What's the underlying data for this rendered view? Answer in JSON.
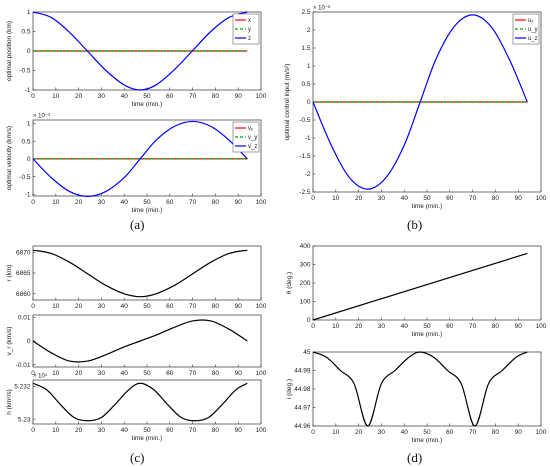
{
  "panel_labels": [
    "(a)",
    "(b)",
    "(c)",
    "(d)"
  ],
  "chart_data": [
    {
      "id": "a1",
      "type": "line",
      "ylabel": "optimal position (km)",
      "xlabel": "time (min.)",
      "xlim": [
        0,
        100
      ],
      "ylim": [
        -1,
        1
      ],
      "xticks": [
        0,
        10,
        20,
        30,
        40,
        50,
        60,
        70,
        80,
        90,
        100
      ],
      "yticks": [
        -1,
        -0.5,
        0,
        0.5,
        1
      ],
      "ytick_labels": [
        "-1",
        "-0.5",
        "0",
        "0.5",
        "1"
      ],
      "legend": "top-right",
      "series": [
        {
          "name": "x",
          "color": "#ff0000",
          "dash": false,
          "x": [
            0,
            94
          ],
          "y": [
            0,
            0
          ]
        },
        {
          "name": "y",
          "color": "#00a000",
          "dash": true,
          "x": [
            0,
            94
          ],
          "y": [
            0,
            0
          ]
        },
        {
          "name": "z",
          "color": "#0000ff",
          "dash": false,
          "x": [
            0,
            8,
            16,
            24,
            32,
            40,
            47,
            54,
            62,
            70,
            78,
            86,
            94
          ],
          "y": [
            1,
            0.86,
            0.48,
            -0.01,
            -0.5,
            -0.87,
            -1,
            -0.87,
            -0.48,
            0.01,
            0.5,
            0.86,
            1
          ]
        }
      ]
    },
    {
      "id": "a2",
      "type": "line",
      "ylabel": "optimal velocity (km/s)",
      "xlabel": "time (min.)",
      "xlim": [
        0,
        100
      ],
      "ylim": [
        -1.05,
        1.1
      ],
      "xticks": [
        0,
        10,
        20,
        30,
        40,
        50,
        60,
        70,
        80,
        90,
        100
      ],
      "yticks": [
        -1,
        -0.5,
        0,
        0.5,
        1
      ],
      "ytick_labels": [
        "-1",
        "-0.5",
        "0",
        "0.5",
        "1"
      ],
      "exponent": "× 10⁻³",
      "legend": "top-right",
      "series": [
        {
          "name": "vₓ",
          "color": "#ff0000",
          "dash": false,
          "x": [
            0,
            94
          ],
          "y": [
            0,
            0
          ]
        },
        {
          "name": "v_y",
          "color": "#00a000",
          "dash": true,
          "x": [
            0,
            94
          ],
          "y": [
            0,
            0
          ]
        },
        {
          "name": "v_z",
          "color": "#0000ff",
          "dash": false,
          "x": [
            0,
            8,
            16,
            24,
            32,
            40,
            47,
            54,
            62,
            70,
            78,
            86,
            94
          ],
          "y": [
            0,
            -0.53,
            -0.92,
            -1.06,
            -0.92,
            -0.53,
            0,
            0.53,
            0.92,
            1.06,
            0.92,
            0.53,
            0
          ]
        }
      ]
    },
    {
      "id": "b",
      "type": "line",
      "ylabel": "optimal control input (m/s²)",
      "xlabel": "time (min.)",
      "xlim": [
        0,
        100
      ],
      "ylim": [
        -2.5,
        2.5
      ],
      "xticks": [
        0,
        10,
        20,
        30,
        40,
        50,
        60,
        70,
        80,
        90,
        100
      ],
      "yticks": [
        -2.5,
        -2,
        -1.5,
        -1,
        -0.5,
        0,
        0.5,
        1,
        1.5,
        2,
        2.5
      ],
      "ytick_labels": [
        "-2.5",
        "-2",
        "-1.5",
        "-1",
        "-0.5",
        "0",
        "0.5",
        "1",
        "1.5",
        "2",
        "2.5"
      ],
      "exponent": "× 10⁻⁶",
      "legend": "top-right",
      "series": [
        {
          "name": "uₓ",
          "color": "#ff0000",
          "dash": false,
          "x": [
            0,
            94
          ],
          "y": [
            0,
            0
          ]
        },
        {
          "name": "u_y",
          "color": "#00a000",
          "dash": true,
          "x": [
            0,
            94
          ],
          "y": [
            0,
            0
          ]
        },
        {
          "name": "u_z",
          "color": "#0000ff",
          "dash": false,
          "x": [
            0,
            8,
            16,
            24,
            32,
            40,
            47,
            54,
            62,
            70,
            78,
            86,
            94
          ],
          "y": [
            0,
            -1.2,
            -2.1,
            -2.42,
            -2.1,
            -1.2,
            0,
            1.2,
            2.1,
            2.42,
            2.1,
            1.2,
            0
          ]
        }
      ]
    },
    {
      "id": "c1",
      "type": "line",
      "ylabel": "r (km)",
      "xlabel": "",
      "xlim": [
        0,
        100
      ],
      "ylim": [
        6858.5,
        6871.5
      ],
      "xticks": [
        0,
        10,
        20,
        30,
        40,
        50,
        60,
        70,
        80,
        90,
        100
      ],
      "yticks": [
        6860,
        6865,
        6870
      ],
      "ytick_labels": [
        "6860",
        "6865",
        "6870"
      ],
      "series": [
        {
          "name": "",
          "color": "#000000",
          "dash": false,
          "x": [
            0,
            8,
            16,
            24,
            32,
            40,
            47,
            54,
            62,
            70,
            78,
            86,
            94
          ],
          "y": [
            6870.5,
            6869.7,
            6867.6,
            6864.8,
            6862,
            6860,
            6859.3,
            6860,
            6862,
            6864.8,
            6867.6,
            6869.7,
            6870.5
          ]
        }
      ]
    },
    {
      "id": "c2",
      "type": "line",
      "ylabel": "v_r (km/s)",
      "xlabel": "",
      "xlim": [
        0,
        100
      ],
      "ylim": [
        -0.011,
        0.011
      ],
      "xticks": [
        0,
        10,
        20,
        30,
        40,
        50,
        60,
        70,
        80,
        90,
        100
      ],
      "yticks": [
        -0.01,
        0,
        0.01
      ],
      "ytick_labels": [
        "-0.01",
        "0",
        "0.01"
      ],
      "series": [
        {
          "name": "",
          "color": "#000000",
          "dash": false,
          "x": [
            0,
            8,
            16,
            24,
            32,
            40,
            47,
            54,
            62,
            70,
            78,
            86,
            94
          ],
          "y": [
            0,
            -0.005,
            -0.0085,
            -0.0085,
            -0.0058,
            -0.0025,
            0,
            0.0025,
            0.0058,
            0.0085,
            0.0085,
            0.005,
            0
          ]
        }
      ]
    },
    {
      "id": "c3",
      "type": "line",
      "ylabel": "h (km²/s)",
      "xlabel": "time (min.)",
      "xlim": [
        0,
        100
      ],
      "ylim": [
        5.2297,
        5.2324
      ],
      "xticks": [
        0,
        10,
        20,
        30,
        40,
        50,
        60,
        70,
        80,
        90,
        100
      ],
      "yticks": [
        5.23,
        5.232
      ],
      "ytick_labels": [
        "5.23",
        "5.232"
      ],
      "exponent": "× 10⁴",
      "series": [
        {
          "name": "",
          "color": "#000000",
          "dash": false,
          "x": [
            0,
            6,
            12,
            18,
            24,
            30,
            36,
            42,
            47,
            53,
            59,
            65,
            71,
            77,
            83,
            89,
            94
          ],
          "y": [
            5.2322,
            5.2318,
            5.2309,
            5.2301,
            5.2299,
            5.2301,
            5.2309,
            5.2318,
            5.2322,
            5.2318,
            5.2309,
            5.2301,
            5.2299,
            5.2301,
            5.2309,
            5.2318,
            5.2322
          ]
        }
      ]
    },
    {
      "id": "d1",
      "type": "line",
      "ylabel": "θ (deg.)",
      "xlabel": "time (min.)",
      "xlim": [
        0,
        100
      ],
      "ylim": [
        0,
        400
      ],
      "xticks": [
        0,
        10,
        20,
        30,
        40,
        50,
        60,
        70,
        80,
        90,
        100
      ],
      "yticks": [
        0,
        100,
        200,
        300,
        400
      ],
      "ytick_labels": [
        "0",
        "100",
        "200",
        "300",
        "400"
      ],
      "series": [
        {
          "name": "",
          "color": "#000000",
          "dash": false,
          "x": [
            0,
            94
          ],
          "y": [
            0,
            360
          ]
        }
      ]
    },
    {
      "id": "d2",
      "type": "line",
      "ylabel": "i (deg.)",
      "xlabel": "time (min.)",
      "xlim": [
        0,
        100
      ],
      "ylim": [
        44.96,
        45
      ],
      "xticks": [
        0,
        10,
        20,
        30,
        40,
        50,
        60,
        70,
        80,
        90,
        100
      ],
      "yticks": [
        44.96,
        44.97,
        44.98,
        44.99,
        45
      ],
      "ytick_labels": [
        "44.96",
        "44.97",
        "44.98",
        "44.99",
        "45"
      ],
      "series": [
        {
          "name": "",
          "color": "#000000",
          "dash": false,
          "x": [
            0,
            6,
            12,
            18,
            24,
            30,
            36,
            42,
            47,
            53,
            59,
            65,
            71,
            77,
            83,
            89,
            94
          ],
          "y": [
            45,
            44.9971,
            44.99,
            44.9829,
            44.96,
            44.9829,
            44.99,
            44.9971,
            45,
            44.9971,
            44.99,
            44.9829,
            44.96,
            44.9829,
            44.99,
            44.9971,
            45
          ]
        }
      ]
    }
  ]
}
